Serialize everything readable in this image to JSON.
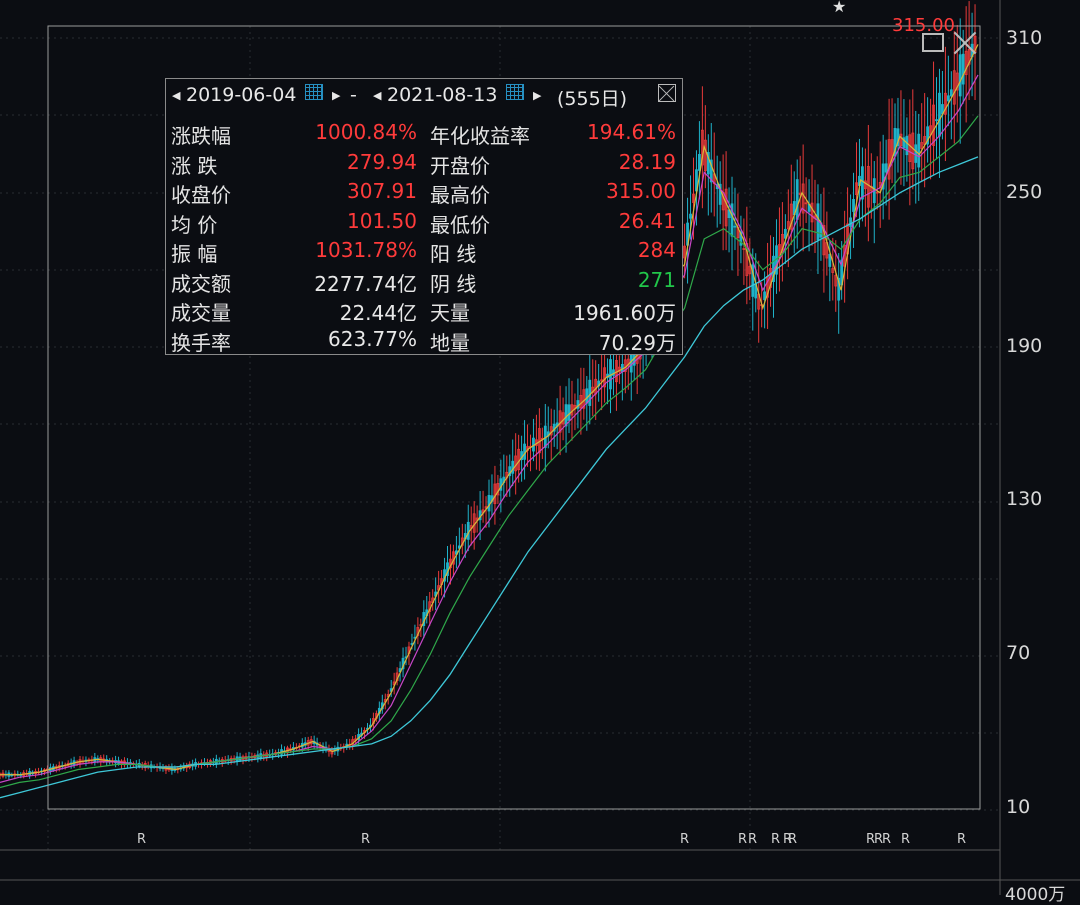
{
  "chart_data": {
    "type": "line",
    "y_axis": {
      "ticks": [
        "310",
        "250",
        "190",
        "130",
        "70",
        "10"
      ],
      "tick_values": [
        310,
        250,
        190,
        130,
        70,
        10
      ],
      "position": "right"
    },
    "x_range": [
      "2019-06-04",
      "2021-08-13"
    ],
    "high_label": "315.00",
    "r_markers": [
      "R",
      "R",
      "R",
      "R",
      "R",
      "R",
      "R",
      "R",
      "R",
      "R",
      "R",
      "R",
      "R"
    ],
    "series": [
      {
        "values": [
          23,
          23,
          24,
          26,
          28,
          29,
          28,
          27,
          26,
          25,
          27,
          28,
          29,
          30,
          31,
          33,
          36,
          32,
          35,
          42,
          55,
          72,
          88,
          104,
          118,
          128,
          140,
          150,
          155,
          163,
          170,
          178,
          182,
          190,
          215,
          222,
          268,
          248,
          232,
          205,
          228,
          250,
          238,
          212,
          255,
          250,
          272,
          265,
          278,
          292,
          307.91
        ],
        "color": "#d8b93a"
      },
      {
        "values": [
          20,
          22,
          23,
          25,
          27,
          28,
          28,
          27,
          26,
          26,
          27,
          28,
          29,
          30,
          31,
          32,
          34,
          33,
          34,
          40,
          50,
          66,
          82,
          98,
          112,
          122,
          134,
          145,
          152,
          160,
          168,
          176,
          181,
          188,
          206,
          218,
          258,
          250,
          234,
          212,
          226,
          244,
          238,
          222,
          248,
          252,
          268,
          264,
          272,
          282,
          296
        ],
        "color": "#c846c8"
      },
      {
        "values": [
          18,
          20,
          21,
          23,
          25,
          26,
          27,
          27,
          26,
          26,
          27,
          28,
          29,
          30,
          31,
          32,
          33,
          33,
          34,
          37,
          44,
          56,
          70,
          86,
          100,
          112,
          124,
          134,
          144,
          152,
          160,
          168,
          174,
          181,
          194,
          205,
          232,
          236,
          230,
          220,
          226,
          236,
          234,
          228,
          240,
          246,
          256,
          258,
          264,
          270,
          280
        ],
        "color": "#2fa84a"
      },
      {
        "values": [
          14,
          16,
          18,
          20,
          22,
          24,
          25,
          26,
          26,
          26,
          27,
          27,
          28,
          29,
          30,
          31,
          32,
          33,
          34,
          35,
          38,
          44,
          52,
          62,
          74,
          86,
          98,
          110,
          120,
          130,
          140,
          150,
          158,
          166,
          176,
          186,
          198,
          206,
          212,
          216,
          222,
          228,
          232,
          236,
          240,
          245,
          250,
          254,
          258,
          261,
          264
        ],
        "color": "#3ec8d8"
      }
    ]
  },
  "panel": {
    "start_date": "2019-06-04",
    "dash": "-",
    "end_date": "2021-08-13",
    "days": "(555日)",
    "rows": [
      {
        "l1": "涨跌幅",
        "v1": "1000.84%",
        "c1": "red",
        "l2": "年化收益率",
        "v2": "194.61%",
        "c2": "red"
      },
      {
        "l1": "涨  跌",
        "v1": "279.94",
        "c1": "red",
        "l2": "开盘价",
        "v2": "28.19",
        "c2": "red"
      },
      {
        "l1": "收盘价",
        "v1": "307.91",
        "c1": "red",
        "l2": "最高价",
        "v2": "315.00",
        "c2": "red"
      },
      {
        "l1": "均  价",
        "v1": "101.50",
        "c1": "red",
        "l2": "最低价",
        "v2": "26.41",
        "c2": "red"
      },
      {
        "l1": "振  幅",
        "v1": "1031.78%",
        "c1": "red",
        "l2": "阳  线",
        "v2": "284",
        "c2": "red"
      },
      {
        "l1": "成交额",
        "v1": "2277.74亿",
        "c1": "white",
        "l2": "阴  线",
        "v2": "271",
        "c2": "green"
      },
      {
        "l1": "成交量",
        "v1": "22.44亿",
        "c1": "white",
        "l2": "天量",
        "v2": "1961.60万",
        "c2": "white"
      },
      {
        "l1": "换手率",
        "v1": "623.77%",
        "c1": "white",
        "l2": "地量",
        "v2": "70.29万",
        "c2": "white"
      }
    ]
  },
  "bottom_axis_label": "4000万",
  "icons": {
    "star": "★",
    "calendar": "calendar-icon",
    "close": "close-icon",
    "minimize": "window-icon"
  }
}
